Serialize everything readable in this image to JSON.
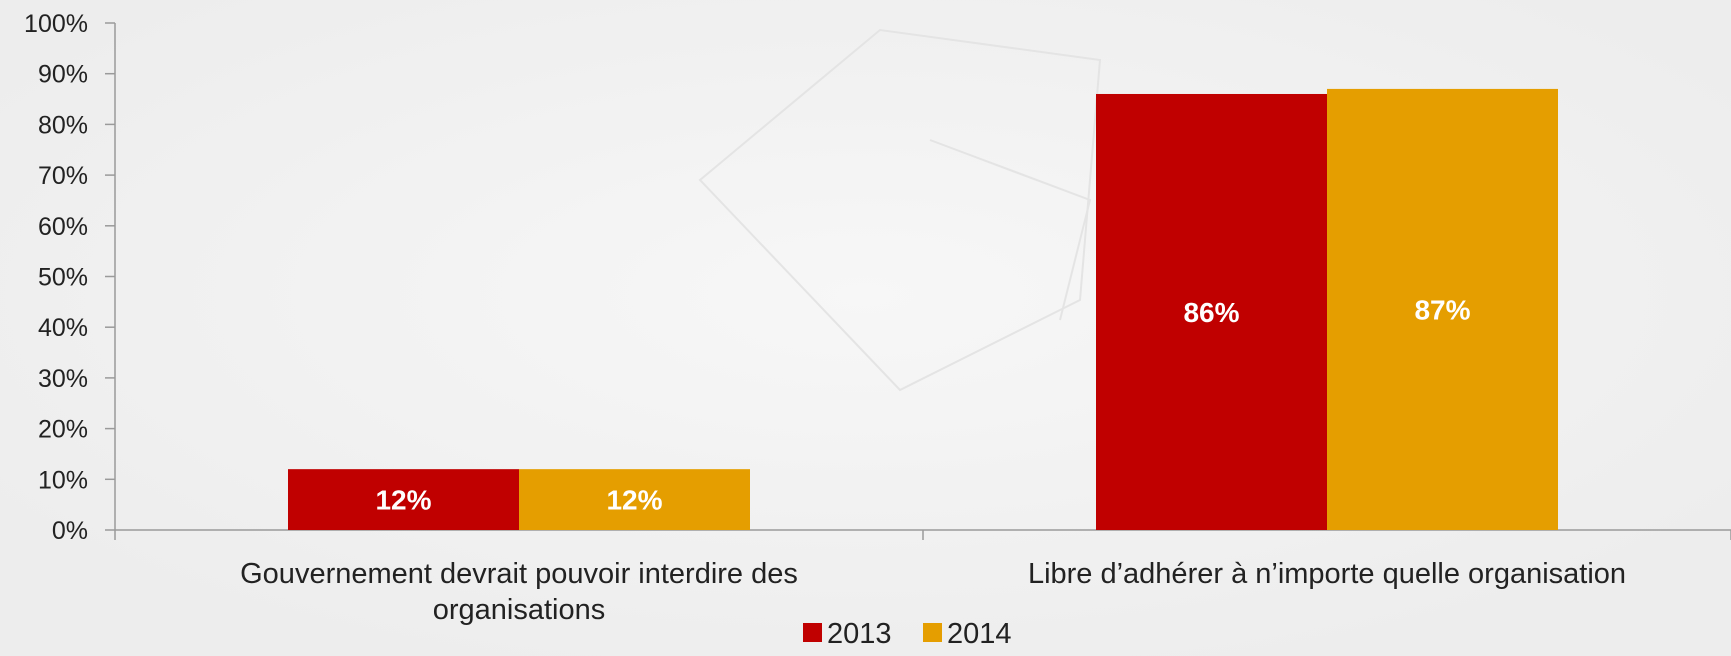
{
  "chart_data": {
    "type": "bar",
    "title": "",
    "xlabel": "",
    "ylabel": "",
    "ylim": [
      0,
      100
    ],
    "y_ticks": [
      "0%",
      "10%",
      "20%",
      "30%",
      "40%",
      "50%",
      "60%",
      "70%",
      "80%",
      "90%",
      "100%"
    ],
    "categories": [
      [
        "Gouvernement devrait pouvoir interdire des",
        "organisations"
      ],
      [
        "Libre d’adhérer à n’importe quelle organisation"
      ]
    ],
    "series": [
      {
        "name": "2013",
        "color": "#c00000",
        "values": [
          12,
          86
        ],
        "labels": [
          "12%",
          "86%"
        ]
      },
      {
        "name": "2014",
        "color": "#e59e00",
        "values": [
          12,
          87
        ],
        "labels": [
          "12%",
          "87%"
        ]
      }
    ],
    "grid": false,
    "legend_position": "bottom"
  }
}
